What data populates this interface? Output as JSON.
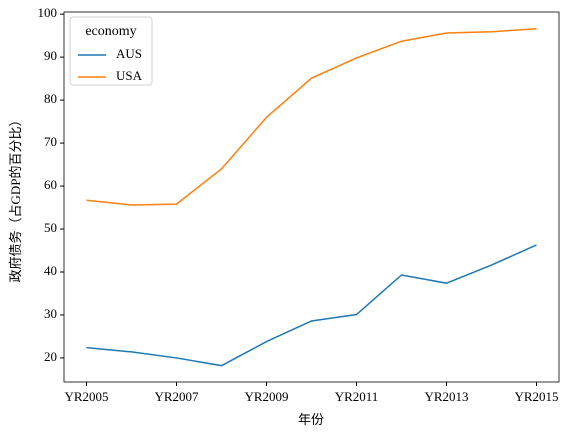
{
  "chart_data": {
    "type": "line",
    "xlabel": "年份",
    "ylabel": "政府债务（占GDP的百分比）",
    "categories": [
      "YR2005",
      null,
      "YR2007",
      null,
      "YR2009",
      null,
      "YR2011",
      null,
      "YR2013",
      null,
      "YR2015"
    ],
    "series": [
      {
        "name": "AUS",
        "color": "#1f77b4",
        "values": [
          22.4,
          21.4,
          20.0,
          18.2,
          23.8,
          28.6,
          30.1,
          39.3,
          37.4,
          41.6,
          46.3
        ]
      },
      {
        "name": "USA",
        "color": "#ff7f0e",
        "values": [
          56.7,
          55.6,
          55.8,
          64.0,
          76.0,
          85.1,
          89.8,
          93.7,
          95.6,
          95.9,
          96.6
        ]
      }
    ],
    "ylim": [
      14.4,
      100.5
    ],
    "yticks": [
      20,
      30,
      40,
      50,
      60,
      70,
      80,
      90,
      100
    ],
    "legend_title": "economy",
    "legend": "upper left",
    "grid": false
  }
}
